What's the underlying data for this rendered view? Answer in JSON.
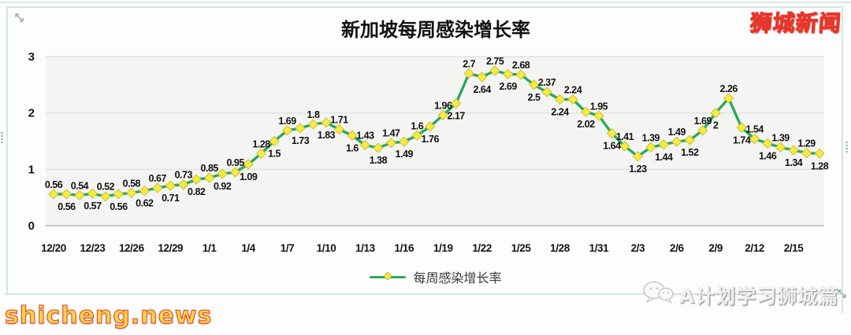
{
  "logo": {
    "text": "狮城新闻"
  },
  "watermarks": {
    "left": "shicheng.news",
    "right": "A计划学习狮城篇"
  },
  "chart_data": {
    "type": "line",
    "title": "新加坡每周感染增长率",
    "legend": [
      "每周感染增长率"
    ],
    "legend_position": "bottom",
    "grid": true,
    "ylim": [
      0,
      3
    ],
    "yticks": [
      0,
      1,
      2,
      3
    ],
    "x_tick_labels": [
      "12/20",
      "12/23",
      "12/26",
      "12/29",
      "1/1",
      "1/4",
      "1/7",
      "1/10",
      "1/13",
      "1/16",
      "1/19",
      "1/22",
      "1/25",
      "1/28",
      "1/31",
      "2/3",
      "2/6",
      "2/9",
      "2/12",
      "2/15"
    ],
    "x_tick_every": 3,
    "data_label_alternation": "first-above-then-below",
    "series": [
      {
        "name": "每周感染增长率",
        "line_color": "#2aa95e",
        "marker": "diamond",
        "marker_color": "#f6eb41",
        "marker_edge_color": "#cdbf35",
        "values": [
          0.56,
          0.56,
          0.54,
          0.57,
          0.52,
          0.56,
          0.58,
          0.62,
          0.67,
          0.71,
          0.73,
          0.82,
          0.85,
          0.92,
          0.95,
          1.09,
          1.28,
          1.5,
          1.69,
          1.73,
          1.8,
          1.83,
          1.71,
          1.6,
          1.43,
          1.38,
          1.47,
          1.49,
          1.6,
          1.76,
          1.96,
          2.17,
          2.7,
          2.64,
          2.75,
          2.69,
          2.68,
          2.5,
          2.37,
          2.24,
          2.24,
          2.02,
          1.95,
          1.64,
          1.41,
          1.23,
          1.39,
          1.44,
          1.49,
          1.52,
          1.69,
          2,
          2.26,
          1.74,
          1.54,
          1.46,
          1.39,
          1.34,
          1.29,
          1.28
        ]
      }
    ],
    "plot_bg": "#f4f4f2",
    "gridline_color": "#e2e2df",
    "axis_line_color": "#c6c6c3"
  }
}
